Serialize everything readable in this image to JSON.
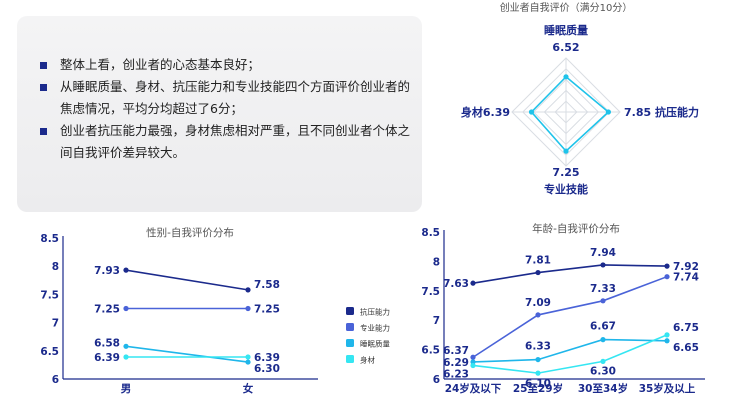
{
  "summary": {
    "bullets": [
      "整体上看，创业者的心态基本良好；",
      "从睡眠质量、身材、抗压能力和专业技能四个方面评价创业者的焦虑情况，平均分均超过了6分；",
      "创业者抗压能力最强，身材焦虑相对严重，且不同创业者个体之间自我评价差异较大。"
    ]
  },
  "colors": {
    "抗压能力": "#1b2a8c",
    "专业能力": "#4a63d8",
    "睡眠质量": "#1fb6ea",
    "身材": "#35e6f2",
    "axis": "#1b2a8c",
    "grid": "#d9dde3"
  },
  "chart_data": [
    {
      "type": "radar",
      "title": "创业者自我评价（满分10分）",
      "axes": [
        {
          "label": "睡眠质量",
          "value": 6.52,
          "value_text": "6.52"
        },
        {
          "label": "抗压能力",
          "value": 7.85,
          "value_text": "7.85"
        },
        {
          "label": "专业技能",
          "value": 7.25,
          "value_text": "7.25"
        },
        {
          "label": "身材",
          "value": 6.39,
          "value_text": "6.39"
        }
      ],
      "max": 10
    },
    {
      "type": "line",
      "title": "性别-自我评价分布",
      "categories": [
        "男",
        "女"
      ],
      "ylim": [
        6,
        8.5
      ],
      "yticks": [
        "6",
        "6.5",
        "7",
        "7.5",
        "8",
        "8.5"
      ],
      "series": [
        {
          "name": "抗压能力",
          "values": [
            7.93,
            7.58
          ],
          "labels": [
            "7.93",
            "7.58"
          ]
        },
        {
          "name": "专业能力",
          "values": [
            7.25,
            7.25
          ],
          "labels": [
            "7.25",
            "7.25"
          ]
        },
        {
          "name": "睡眠质量",
          "values": [
            6.58,
            6.3
          ],
          "labels": [
            "6.58",
            "6.30"
          ]
        },
        {
          "name": "身材",
          "values": [
            6.39,
            6.39
          ],
          "labels": [
            "6.39",
            "6.39"
          ]
        }
      ],
      "legend": [
        "抗压能力",
        "专业能力",
        "睡眠质量",
        "身材"
      ]
    },
    {
      "type": "line",
      "title": "年龄-自我评价分布",
      "categories": [
        "24岁及以下",
        "25至29岁",
        "30至34岁",
        "35岁及以上"
      ],
      "ylim": [
        6,
        8.5
      ],
      "yticks": [
        "6",
        "6.5",
        "7",
        "7.5",
        "8",
        "8.5"
      ],
      "series": [
        {
          "name": "抗压能力",
          "values": [
            7.63,
            7.81,
            7.94,
            7.92
          ],
          "labels": [
            "7.63",
            "7.81",
            "7.94",
            "7.92"
          ]
        },
        {
          "name": "专业能力",
          "values": [
            6.37,
            7.09,
            7.33,
            7.74
          ],
          "labels": [
            "6.37",
            "7.09",
            "7.33",
            "7.74"
          ]
        },
        {
          "name": "睡眠质量",
          "values": [
            6.29,
            6.33,
            6.67,
            6.65
          ],
          "labels": [
            "6.29",
            "6.33",
            "6.67",
            "6.65"
          ]
        },
        {
          "name": "身材",
          "values": [
            6.23,
            6.1,
            6.3,
            6.75
          ],
          "labels": [
            "6.23",
            "6.10",
            "6.30",
            "6.75"
          ]
        }
      ]
    }
  ]
}
